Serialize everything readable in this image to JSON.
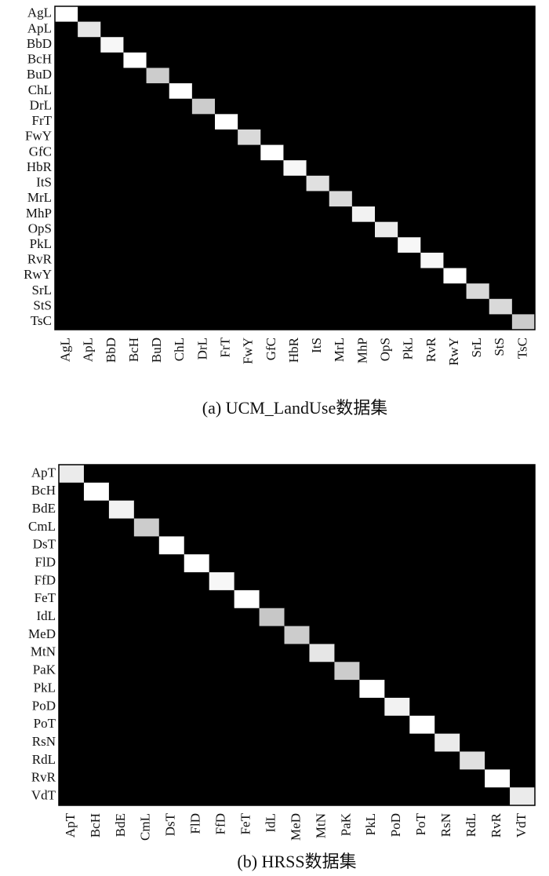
{
  "chart_data": [
    {
      "type": "heatmap",
      "title": "(a) UCM_LandUse数据集",
      "cmap": "gray",
      "categories": [
        "AgL",
        "ApL",
        "BbD",
        "BcH",
        "BuD",
        "ChL",
        "DrL",
        "FrT",
        "FwY",
        "GfC",
        "HbR",
        "ItS",
        "MrL",
        "MhP",
        "OpS",
        "PkL",
        "RvR",
        "RwY",
        "SrL",
        "StS",
        "TsC"
      ],
      "values": [
        [
          1,
          0,
          0,
          0,
          0,
          0,
          0,
          0,
          0,
          0,
          0,
          0,
          0,
          0,
          0,
          0,
          0,
          0,
          0,
          0,
          0
        ],
        [
          0,
          0.9,
          0,
          0,
          0,
          0,
          0,
          0,
          0,
          0,
          0,
          0,
          0,
          0,
          0,
          0,
          0,
          0,
          0,
          0,
          0
        ],
        [
          0,
          0,
          0.97,
          0,
          0,
          0,
          0,
          0,
          0,
          0,
          0,
          0,
          0,
          0,
          0,
          0,
          0,
          0,
          0,
          0,
          0
        ],
        [
          0,
          0,
          0,
          1,
          0,
          0,
          0,
          0,
          0,
          0,
          0,
          0,
          0,
          0,
          0,
          0,
          0,
          0,
          0,
          0,
          0
        ],
        [
          0,
          0,
          0,
          0,
          0.8,
          0,
          0,
          0,
          0,
          0,
          0,
          0,
          0,
          0,
          0,
          0,
          0,
          0,
          0,
          0,
          0
        ],
        [
          0,
          0,
          0,
          0,
          0,
          1,
          0,
          0,
          0,
          0,
          0,
          0,
          0,
          0,
          0,
          0,
          0,
          0,
          0,
          0,
          0
        ],
        [
          0,
          0,
          0,
          0,
          0,
          0,
          0.8,
          0,
          0,
          0,
          0,
          0,
          0,
          0,
          0,
          0,
          0,
          0,
          0,
          0,
          0
        ],
        [
          0,
          0,
          0,
          0,
          0,
          0,
          0,
          1,
          0,
          0,
          0,
          0,
          0,
          0,
          0,
          0,
          0,
          0,
          0,
          0,
          0
        ],
        [
          0,
          0,
          0,
          0,
          0,
          0,
          0,
          0,
          0.85,
          0,
          0,
          0,
          0,
          0,
          0,
          0,
          0,
          0,
          0,
          0,
          0
        ],
        [
          0,
          0,
          0,
          0,
          0,
          0,
          0,
          0,
          0,
          1,
          0,
          0,
          0,
          0,
          0,
          0,
          0,
          0,
          0,
          0,
          0
        ],
        [
          0,
          0,
          0,
          0,
          0,
          0,
          0,
          0,
          0,
          0,
          0.97,
          0,
          0,
          0,
          0,
          0,
          0,
          0,
          0,
          0,
          0
        ],
        [
          0,
          0,
          0,
          0,
          0,
          0,
          0,
          0,
          0,
          0,
          0,
          0.88,
          0,
          0,
          0,
          0,
          0,
          0,
          0,
          0,
          0
        ],
        [
          0,
          0,
          0,
          0,
          0,
          0,
          0,
          0,
          0,
          0,
          0,
          0,
          0.85,
          0,
          0,
          0,
          0,
          0,
          0,
          0,
          0
        ],
        [
          0,
          0,
          0,
          0,
          0,
          0,
          0,
          0,
          0,
          0,
          0,
          0,
          0,
          0.95,
          0,
          0,
          0,
          0,
          0,
          0,
          0
        ],
        [
          0,
          0,
          0,
          0,
          0,
          0,
          0,
          0,
          0,
          0,
          0,
          0,
          0,
          0,
          0.92,
          0,
          0,
          0,
          0,
          0,
          0
        ],
        [
          0,
          0,
          0,
          0,
          0,
          0,
          0,
          0,
          0,
          0,
          0,
          0,
          0,
          0,
          0,
          0.97,
          0,
          0,
          0,
          0,
          0
        ],
        [
          0,
          0,
          0,
          0,
          0,
          0,
          0,
          0,
          0,
          0,
          0,
          0,
          0,
          0,
          0,
          0,
          0.97,
          0,
          0,
          0,
          0
        ],
        [
          0,
          0,
          0,
          0,
          0,
          0,
          0,
          0,
          0,
          0,
          0,
          0,
          0,
          0,
          0,
          0,
          0,
          1,
          0,
          0,
          0
        ],
        [
          0,
          0,
          0,
          0,
          0,
          0,
          0,
          0,
          0,
          0,
          0,
          0,
          0,
          0,
          0,
          0,
          0,
          0,
          0.85,
          0,
          0
        ],
        [
          0,
          0,
          0,
          0,
          0,
          0,
          0,
          0,
          0,
          0,
          0,
          0,
          0,
          0,
          0,
          0,
          0,
          0,
          0,
          0.85,
          0
        ],
        [
          0,
          0,
          0,
          0,
          0,
          0,
          0,
          0,
          0,
          0,
          0,
          0,
          0,
          0,
          0,
          0,
          0,
          0,
          0,
          0,
          0.8
        ]
      ]
    },
    {
      "type": "heatmap",
      "title": "(b) HRSS数据集",
      "cmap": "gray",
      "categories": [
        "ApT",
        "BcH",
        "BdE",
        "CmL",
        "DsT",
        "FlD",
        "FfD",
        "FeT",
        "IdL",
        "MeD",
        "MtN",
        "PaK",
        "PkL",
        "PoD",
        "PoT",
        "RsN",
        "RdL",
        "RvR",
        "VdT"
      ],
      "values": [
        [
          0.92,
          0,
          0,
          0,
          0,
          0,
          0,
          0,
          0,
          0,
          0,
          0,
          0,
          0,
          0,
          0,
          0,
          0,
          0
        ],
        [
          0,
          1,
          0,
          0,
          0,
          0,
          0,
          0,
          0,
          0,
          0,
          0,
          0,
          0,
          0,
          0,
          0,
          0,
          0
        ],
        [
          0,
          0,
          0.95,
          0,
          0,
          0,
          0,
          0,
          0,
          0,
          0,
          0,
          0,
          0,
          0,
          0,
          0,
          0,
          0
        ],
        [
          0,
          0,
          0,
          0.8,
          0,
          0,
          0,
          0,
          0,
          0,
          0,
          0,
          0,
          0,
          0,
          0,
          0,
          0,
          0
        ],
        [
          0,
          0,
          0,
          0,
          1,
          0,
          0,
          0,
          0,
          0,
          0,
          0,
          0,
          0,
          0,
          0,
          0,
          0,
          0
        ],
        [
          0,
          0,
          0,
          0,
          0,
          1,
          0,
          0,
          0,
          0,
          0,
          0,
          0,
          0,
          0,
          0,
          0,
          0,
          0
        ],
        [
          0,
          0,
          0,
          0,
          0,
          0,
          0.97,
          0,
          0,
          0,
          0,
          0,
          0,
          0,
          0,
          0,
          0,
          0,
          0
        ],
        [
          0,
          0,
          0,
          0,
          0,
          0,
          0,
          1,
          0,
          0,
          0,
          0,
          0,
          0,
          0,
          0,
          0,
          0,
          0
        ],
        [
          0,
          0,
          0,
          0,
          0,
          0,
          0,
          0,
          0.78,
          0,
          0,
          0,
          0,
          0,
          0,
          0,
          0,
          0,
          0
        ],
        [
          0,
          0,
          0,
          0,
          0,
          0,
          0,
          0,
          0,
          0.8,
          0,
          0,
          0,
          0,
          0,
          0,
          0,
          0,
          0
        ],
        [
          0,
          0,
          0,
          0,
          0,
          0,
          0,
          0,
          0,
          0,
          0.9,
          0,
          0,
          0,
          0,
          0,
          0,
          0,
          0
        ],
        [
          0,
          0,
          0,
          0,
          0,
          0,
          0,
          0,
          0,
          0,
          0,
          0.8,
          0,
          0,
          0,
          0,
          0,
          0,
          0
        ],
        [
          0,
          0,
          0,
          0,
          0,
          0,
          0,
          0,
          0,
          0,
          0,
          0,
          1,
          0,
          0,
          0,
          0,
          0,
          0
        ],
        [
          0,
          0,
          0,
          0,
          0,
          0,
          0,
          0,
          0,
          0,
          0,
          0,
          0,
          0.95,
          0,
          0,
          0,
          0,
          0
        ],
        [
          0,
          0,
          0,
          0,
          0,
          0,
          0,
          0,
          0,
          0,
          0,
          0,
          0,
          0,
          1,
          0,
          0,
          0,
          0
        ],
        [
          0,
          0,
          0,
          0,
          0,
          0,
          0,
          0,
          0,
          0,
          0,
          0,
          0,
          0,
          0,
          0.92,
          0,
          0,
          0
        ],
        [
          0,
          0,
          0,
          0,
          0,
          0,
          0,
          0,
          0,
          0,
          0,
          0,
          0,
          0,
          0,
          0,
          0.88,
          0,
          0
        ],
        [
          0,
          0,
          0,
          0,
          0,
          0,
          0,
          0,
          0,
          0,
          0,
          0,
          0,
          0,
          0,
          0,
          0,
          1,
          0
        ],
        [
          0,
          0,
          0,
          0,
          0,
          0,
          0,
          0,
          0,
          0,
          0,
          0,
          0,
          0,
          0,
          0,
          0,
          0,
          0.92
        ]
      ]
    }
  ]
}
